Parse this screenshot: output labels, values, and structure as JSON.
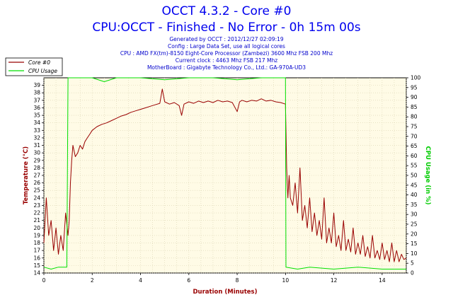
{
  "header": {
    "title1": "OCCT 4.3.2 - Core #0",
    "title2": "CPU:OCCT - Finished - No Error - 0h 15m 00s",
    "info": [
      "Generated by OCCT : 2012/12/27 02:09:19",
      "Config : Large Data Set, use all logical cores",
      "CPU : AMD FX(tm)-8150 Eight-Core Processor (Zambezi) 3600 Mhz FSB 200 Mhz",
      "Current clock : 4463 Mhz FSB 217 Mhz",
      "MotherBoard : Gigabyte Technology Co., Ltd.: GA-970A-UD3"
    ]
  },
  "colors": {
    "temperature": "#990000",
    "cpu_usage": "#00e000",
    "plot_background": "#fffbe6",
    "grid": "#d9d2b0",
    "title": "#0000ee"
  },
  "chart_data": {
    "type": "line",
    "xlabel": "Duration (Minutes)",
    "ylabel_left": "Temperature (°C)",
    "ylabel_right": "CPU Usage (in %)",
    "xlim": [
      0,
      15
    ],
    "ylim_left": [
      14,
      40
    ],
    "ylim_right": [
      0,
      100
    ],
    "x_ticks": [
      0,
      2,
      4,
      6,
      8,
      10,
      12,
      14
    ],
    "y_ticks_left": [
      14,
      15,
      16,
      17,
      18,
      19,
      20,
      21,
      22,
      23,
      24,
      25,
      26,
      27,
      28,
      29,
      30,
      31,
      32,
      33,
      34,
      35,
      36,
      37,
      38,
      39
    ],
    "y_ticks_right": [
      0,
      5,
      10,
      15,
      20,
      25,
      30,
      35,
      40,
      45,
      50,
      55,
      60,
      65,
      70,
      75,
      80,
      85,
      90,
      95,
      100
    ],
    "grid": true,
    "legend_position": "top-left",
    "series": [
      {
        "name": "Core #0",
        "axis": "left",
        "points": [
          [
            0,
            18
          ],
          [
            0.1,
            24
          ],
          [
            0.2,
            19
          ],
          [
            0.3,
            21
          ],
          [
            0.4,
            17
          ],
          [
            0.5,
            20
          ],
          [
            0.6,
            16.5
          ],
          [
            0.7,
            19
          ],
          [
            0.8,
            17
          ],
          [
            0.9,
            22
          ],
          [
            1.0,
            19
          ],
          [
            1.05,
            21
          ],
          [
            1.1,
            26
          ],
          [
            1.15,
            29
          ],
          [
            1.2,
            31
          ],
          [
            1.3,
            29.5
          ],
          [
            1.4,
            30
          ],
          [
            1.5,
            31
          ],
          [
            1.6,
            30.5
          ],
          [
            1.7,
            31.5
          ],
          [
            1.8,
            32
          ],
          [
            1.9,
            32.5
          ],
          [
            2.0,
            33
          ],
          [
            2.2,
            33.5
          ],
          [
            2.4,
            33.8
          ],
          [
            2.6,
            34
          ],
          [
            2.8,
            34.3
          ],
          [
            3.0,
            34.6
          ],
          [
            3.2,
            34.9
          ],
          [
            3.4,
            35.1
          ],
          [
            3.6,
            35.4
          ],
          [
            3.8,
            35.6
          ],
          [
            4.0,
            35.8
          ],
          [
            4.2,
            36
          ],
          [
            4.4,
            36.2
          ],
          [
            4.6,
            36.4
          ],
          [
            4.8,
            36.6
          ],
          [
            4.9,
            38.5
          ],
          [
            5.0,
            36.8
          ],
          [
            5.2,
            36.5
          ],
          [
            5.4,
            36.7
          ],
          [
            5.6,
            36.3
          ],
          [
            5.7,
            35
          ],
          [
            5.8,
            36.5
          ],
          [
            6.0,
            36.8
          ],
          [
            6.2,
            36.6
          ],
          [
            6.4,
            36.9
          ],
          [
            6.6,
            36.7
          ],
          [
            6.8,
            36.9
          ],
          [
            7.0,
            36.7
          ],
          [
            7.2,
            37
          ],
          [
            7.4,
            36.8
          ],
          [
            7.6,
            36.9
          ],
          [
            7.8,
            36.7
          ],
          [
            8.0,
            35.5
          ],
          [
            8.1,
            36.8
          ],
          [
            8.2,
            37
          ],
          [
            8.4,
            36.8
          ],
          [
            8.6,
            37
          ],
          [
            8.8,
            36.9
          ],
          [
            9.0,
            37.2
          ],
          [
            9.2,
            36.9
          ],
          [
            9.4,
            37
          ],
          [
            9.6,
            36.8
          ],
          [
            9.8,
            36.7
          ],
          [
            10.0,
            36.5
          ],
          [
            10.05,
            28
          ],
          [
            10.1,
            24
          ],
          [
            10.15,
            27
          ],
          [
            10.2,
            24
          ],
          [
            10.3,
            23
          ],
          [
            10.4,
            26
          ],
          [
            10.5,
            22
          ],
          [
            10.6,
            28
          ],
          [
            10.7,
            21
          ],
          [
            10.8,
            23
          ],
          [
            10.9,
            20
          ],
          [
            11.0,
            24
          ],
          [
            11.1,
            19.5
          ],
          [
            11.2,
            22
          ],
          [
            11.3,
            19
          ],
          [
            11.4,
            21
          ],
          [
            11.5,
            18.5
          ],
          [
            11.6,
            24
          ],
          [
            11.7,
            18
          ],
          [
            11.8,
            20
          ],
          [
            11.9,
            18
          ],
          [
            12.0,
            22
          ],
          [
            12.1,
            17.5
          ],
          [
            12.2,
            19
          ],
          [
            12.3,
            17
          ],
          [
            12.4,
            21
          ],
          [
            12.5,
            17
          ],
          [
            12.6,
            18.5
          ],
          [
            12.7,
            16.8
          ],
          [
            12.8,
            20
          ],
          [
            12.9,
            16.5
          ],
          [
            13.0,
            18
          ],
          [
            13.1,
            16.5
          ],
          [
            13.2,
            19
          ],
          [
            13.3,
            16.2
          ],
          [
            13.4,
            17.5
          ],
          [
            13.5,
            16
          ],
          [
            13.6,
            19
          ],
          [
            13.7,
            16
          ],
          [
            13.8,
            17
          ],
          [
            13.9,
            15.8
          ],
          [
            14.0,
            18
          ],
          [
            14.1,
            15.8
          ],
          [
            14.2,
            17
          ],
          [
            14.3,
            15.5
          ],
          [
            14.4,
            18
          ],
          [
            14.5,
            15.5
          ],
          [
            14.6,
            17
          ],
          [
            14.7,
            15.5
          ],
          [
            14.8,
            16.5
          ],
          [
            14.9,
            15.8
          ],
          [
            15.0,
            16
          ]
        ]
      },
      {
        "name": "CPU Usage",
        "axis": "right",
        "points": [
          [
            0,
            3
          ],
          [
            0.3,
            2
          ],
          [
            0.6,
            3
          ],
          [
            0.95,
            3
          ],
          [
            1.0,
            100
          ],
          [
            2.0,
            100
          ],
          [
            2.5,
            98
          ],
          [
            3.0,
            100
          ],
          [
            4.0,
            100
          ],
          [
            5.0,
            99
          ],
          [
            6.0,
            100
          ],
          [
            7.0,
            100
          ],
          [
            8.0,
            99
          ],
          [
            9.0,
            100
          ],
          [
            10.0,
            100
          ],
          [
            10.02,
            3
          ],
          [
            10.5,
            2
          ],
          [
            11.0,
            3
          ],
          [
            12.0,
            2
          ],
          [
            13.0,
            3
          ],
          [
            14.0,
            2
          ],
          [
            15.0,
            2
          ]
        ]
      }
    ]
  }
}
